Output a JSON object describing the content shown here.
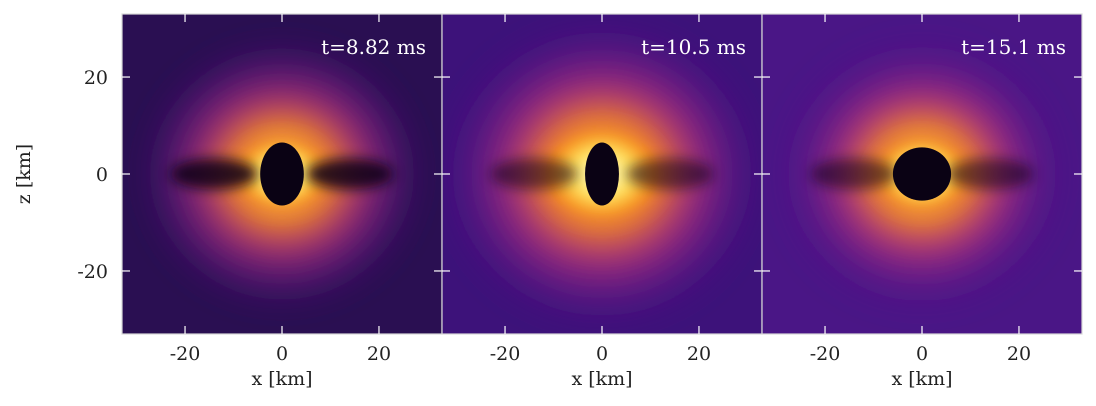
{
  "chart_data": {
    "type": "heatmap",
    "title": "",
    "colormap": "inferno",
    "grid": false,
    "xlabel": "x [km]",
    "ylabel": "z [km]",
    "xlim": [
      -33,
      33
    ],
    "ylim": [
      -33,
      33
    ],
    "xticks": [
      -20,
      0,
      20
    ],
    "yticks": [
      -20,
      0,
      20
    ],
    "xtick_labels": [
      "-20",
      "0",
      "20"
    ],
    "ytick_labels": [
      "-20",
      "0",
      "20"
    ],
    "panels": [
      {
        "time_label": "t=8.82 ms",
        "background": "#2a0f52",
        "core_radius_x": 4.5,
        "core_radius_z": 6.5,
        "bright_radius": 12,
        "halo_radius": 30
      },
      {
        "time_label": "t=10.5 ms",
        "background": "#3d127a",
        "core_radius_x": 3.5,
        "core_radius_z": 6.5,
        "bright_radius": 15,
        "halo_radius": 34
      },
      {
        "time_label": "t=15.1 ms",
        "background": "#4a1686",
        "core_radius_x": 6.0,
        "core_radius_z": 5.5,
        "bright_radius": 12,
        "halo_radius": 30
      }
    ]
  }
}
